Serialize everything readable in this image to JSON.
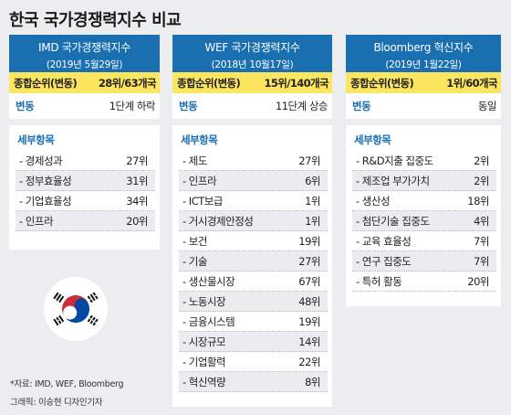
{
  "title": "한국 국가경쟁력지수 비교",
  "panels": [
    {
      "name": "IMD 국가경쟁력지수",
      "date": "(2019년 5월29일)",
      "rank_label": "종합순위(변동)",
      "rank_value": "28위/63개국",
      "change_label": "변동",
      "change_value": "1단계 하락",
      "detail_label": "세부항목",
      "items": [
        {
          "name": "- 경제성과",
          "rank": "27위"
        },
        {
          "name": "- 정부효율성",
          "rank": "31위"
        },
        {
          "name": "- 기업효율성",
          "rank": "34위"
        },
        {
          "name": "- 인프라",
          "rank": "20위"
        }
      ]
    },
    {
      "name": "WEF 국가경쟁력지수",
      "date": "(2018년 10월17일)",
      "rank_label": "종합순위(변동)",
      "rank_value": "15위/140개국",
      "change_label": "변동",
      "change_value": "11단계 상승",
      "detail_label": "세부항목",
      "items": [
        {
          "name": "- 제도",
          "rank": "27위"
        },
        {
          "name": "- 인프라",
          "rank": "6위"
        },
        {
          "name": "- ICT보급",
          "rank": "1위"
        },
        {
          "name": "- 거시경제안정성",
          "rank": "1위"
        },
        {
          "name": "- 보건",
          "rank": "19위"
        },
        {
          "name": "- 기술",
          "rank": "27위"
        },
        {
          "name": "- 생산물시장",
          "rank": "67위"
        },
        {
          "name": "- 노동시장",
          "rank": "48위"
        },
        {
          "name": "- 금융시스템",
          "rank": "19위"
        },
        {
          "name": "- 시장규모",
          "rank": "14위"
        },
        {
          "name": "- 기업활력",
          "rank": "22위"
        },
        {
          "name": "- 혁신역량",
          "rank": "8위"
        }
      ]
    },
    {
      "name": "Bloomberg 혁신지수",
      "date": "(2019년 1월22일)",
      "rank_label": "종합순위(변동)",
      "rank_value": "1위/60개국",
      "change_label": "변동",
      "change_value": "동일",
      "detail_label": "세부항목",
      "items": [
        {
          "name": "- R&D지출 집중도",
          "rank": "2위"
        },
        {
          "name": "- 제조업 부가가치",
          "rank": "2위"
        },
        {
          "name": "- 생산성",
          "rank": "18위"
        },
        {
          "name": "- 첨단기술 집중도",
          "rank": "4위"
        },
        {
          "name": "- 교육 효율성",
          "rank": "7위"
        },
        {
          "name": "- 연구 집중도",
          "rank": "7위"
        },
        {
          "name": "- 특허 활동",
          "rank": "20위"
        }
      ]
    }
  ],
  "source": "*자료: IMD, WEF, Bloomberg",
  "credit": "그래픽: 이승현 디자인기자",
  "colors": {
    "header_blue": "#1a6fb1",
    "rank_yellow": "#fde65f",
    "flag_red": "#cd2e3a",
    "flag_blue": "#0047a0"
  },
  "flag_icon": "south-korea-flag-icon"
}
